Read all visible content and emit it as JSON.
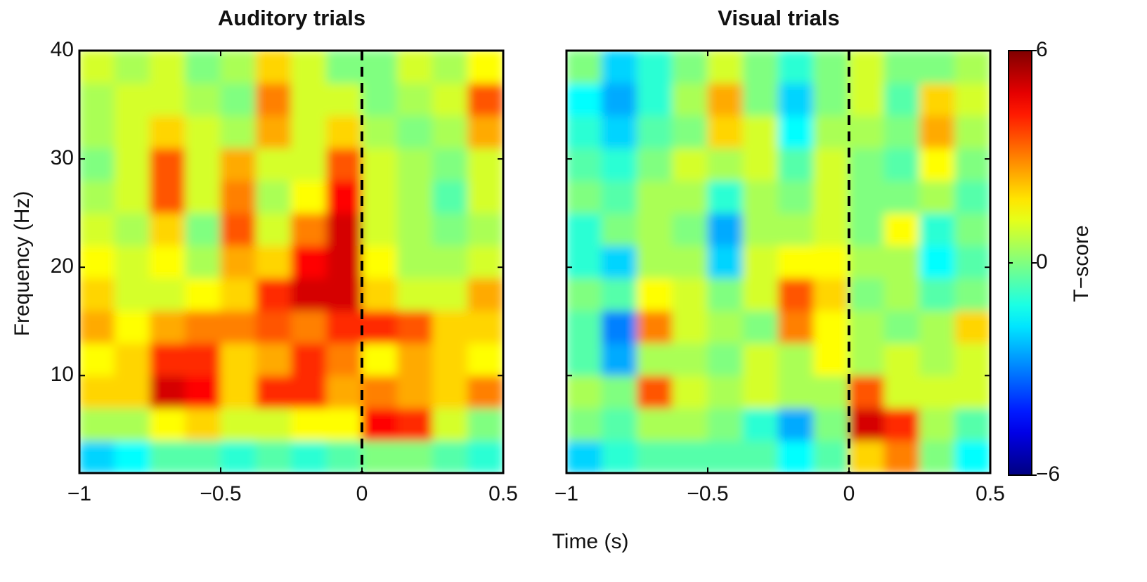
{
  "chart_data": [
    {
      "type": "heatmap",
      "title": "Auditory trials",
      "xlabel": "Time (s)",
      "ylabel": "Frequency (Hz)",
      "colormap": "jet",
      "x": [
        -0.9375,
        -0.8125,
        -0.6875,
        -0.5625,
        -0.4375,
        -0.3125,
        -0.1875,
        -0.0625,
        0.0625,
        0.1875,
        0.3125,
        0.4375
      ],
      "y": [
        2.5,
        5.5,
        8.5,
        11.5,
        14.5,
        17.5,
        20.5,
        23.5,
        26.5,
        29.5,
        32.5,
        35.5,
        38.5
      ],
      "z": [
        [
          -2,
          -1.5,
          -0.5,
          -0.5,
          -1,
          -0.5,
          -1,
          -0.5,
          0,
          0,
          -0.5,
          -1
        ],
        [
          0.5,
          0.5,
          1.5,
          2,
          1,
          1,
          1.5,
          1.5,
          4.5,
          4,
          1,
          0
        ],
        [
          2,
          2,
          5,
          4.5,
          2,
          4,
          4,
          2.5,
          3,
          2.5,
          2,
          3
        ],
        [
          1.5,
          2,
          4,
          4,
          2,
          2.5,
          4,
          3,
          1.5,
          2.5,
          2,
          1.5
        ],
        [
          2.5,
          1.5,
          2.5,
          3,
          3,
          3.5,
          3,
          4,
          4,
          3.5,
          2,
          2
        ],
        [
          2,
          1,
          1,
          1.5,
          2,
          4,
          5,
          5,
          2,
          1,
          1,
          2.5
        ],
        [
          1.5,
          1,
          1.5,
          0.5,
          2.5,
          2,
          4.5,
          5,
          1.5,
          0.5,
          0.5,
          1
        ],
        [
          1,
          0.5,
          2,
          0,
          3.5,
          1,
          3,
          5,
          1,
          0.5,
          0,
          0.5
        ],
        [
          0.5,
          1,
          3.5,
          1,
          3,
          0.5,
          1.5,
          4.5,
          1,
          0.5,
          -0.5,
          1
        ],
        [
          0,
          1,
          3.5,
          1,
          2.5,
          1,
          1,
          3.5,
          1,
          0.5,
          0,
          1
        ],
        [
          0.5,
          1,
          2,
          1,
          0.5,
          2.5,
          1,
          2,
          0.5,
          0,
          0.5,
          2.5
        ],
        [
          0.5,
          1,
          1,
          0.5,
          0,
          3,
          1,
          1,
          0,
          0.5,
          1,
          3.5
        ],
        [
          1,
          0.5,
          1,
          0,
          0.5,
          2,
          1,
          0,
          0,
          1,
          0.5,
          1.5
        ]
      ],
      "xlim": [
        -1,
        0.5
      ],
      "ylim": [
        1,
        40
      ],
      "xticks": [
        {
          "value": -1,
          "label": "−1"
        },
        {
          "value": -0.5,
          "label": "−0.5"
        },
        0,
        0.5
      ],
      "yticks": [
        10,
        20,
        30,
        40
      ],
      "clim": [
        -6,
        6
      ],
      "vline": 0
    },
    {
      "type": "heatmap",
      "title": "Visual trials",
      "colormap": "jet",
      "x": [
        -0.9375,
        -0.8125,
        -0.6875,
        -0.5625,
        -0.4375,
        -0.3125,
        -0.1875,
        -0.0625,
        0.0625,
        0.1875,
        0.3125,
        0.4375
      ],
      "y": [
        2.5,
        5.5,
        8.5,
        11.5,
        14.5,
        17.5,
        20.5,
        23.5,
        26.5,
        29.5,
        32.5,
        35.5,
        38.5
      ],
      "z": [
        [
          -2,
          -1,
          -0.5,
          -0.5,
          -0.5,
          -0.5,
          -1.5,
          -0.5,
          2,
          3,
          0,
          -1.5
        ],
        [
          0,
          -0.5,
          0.5,
          0.5,
          0,
          -1,
          -2.5,
          0,
          5,
          4,
          0.5,
          -0.5
        ],
        [
          0.5,
          0,
          3.5,
          1,
          0.5,
          1,
          0.5,
          0.5,
          3.5,
          1,
          1,
          1
        ],
        [
          -0.5,
          -2.5,
          0.5,
          0.5,
          0,
          1,
          0.5,
          1.5,
          0.5,
          1,
          0.5,
          1
        ],
        [
          -0.5,
          -3,
          3,
          1,
          0.5,
          0,
          3,
          1.5,
          0.5,
          0,
          0.5,
          2
        ],
        [
          0,
          -0.5,
          1.5,
          1,
          0,
          1,
          3.5,
          2,
          0,
          0.5,
          -0.5,
          0
        ],
        [
          -1,
          -2,
          0.5,
          0.5,
          -2,
          1,
          1.5,
          1.5,
          0.5,
          0.5,
          -1.5,
          -0.5
        ],
        [
          -1,
          0,
          0.5,
          0,
          -2.5,
          0.5,
          0.5,
          1,
          0,
          1.5,
          -1,
          0
        ],
        [
          0,
          -0.5,
          0.5,
          0.5,
          -1,
          0.5,
          0,
          1,
          0,
          0,
          0.5,
          -0.5
        ],
        [
          -0.5,
          -1,
          0,
          1,
          0.5,
          1,
          -0.5,
          1,
          0,
          -0.5,
          1.5,
          0
        ],
        [
          -1,
          -2,
          -0.5,
          0,
          2,
          1,
          -1.5,
          0.5,
          0.5,
          0,
          2.5,
          0.5
        ],
        [
          -1.5,
          -2.5,
          -1,
          0.5,
          2.5,
          0,
          -2,
          0,
          1,
          -0.5,
          2,
          1
        ],
        [
          0,
          -2,
          -1,
          0,
          1,
          0,
          -1,
          0,
          1,
          0,
          0,
          0.5
        ]
      ],
      "xlim": [
        -1,
        0.5
      ],
      "ylim": [
        1,
        40
      ],
      "xticks": [
        {
          "value": -1,
          "label": "−1"
        },
        {
          "value": -0.5,
          "label": "−0.5"
        },
        0,
        0.5
      ],
      "yticks": [
        10,
        20,
        30,
        40
      ],
      "clim": [
        -6,
        6
      ],
      "vline": 0,
      "colorbar": {
        "label": "T−score",
        "ticks": [
          {
            "value": -6,
            "label": "−6"
          },
          0,
          6
        ]
      }
    }
  ]
}
